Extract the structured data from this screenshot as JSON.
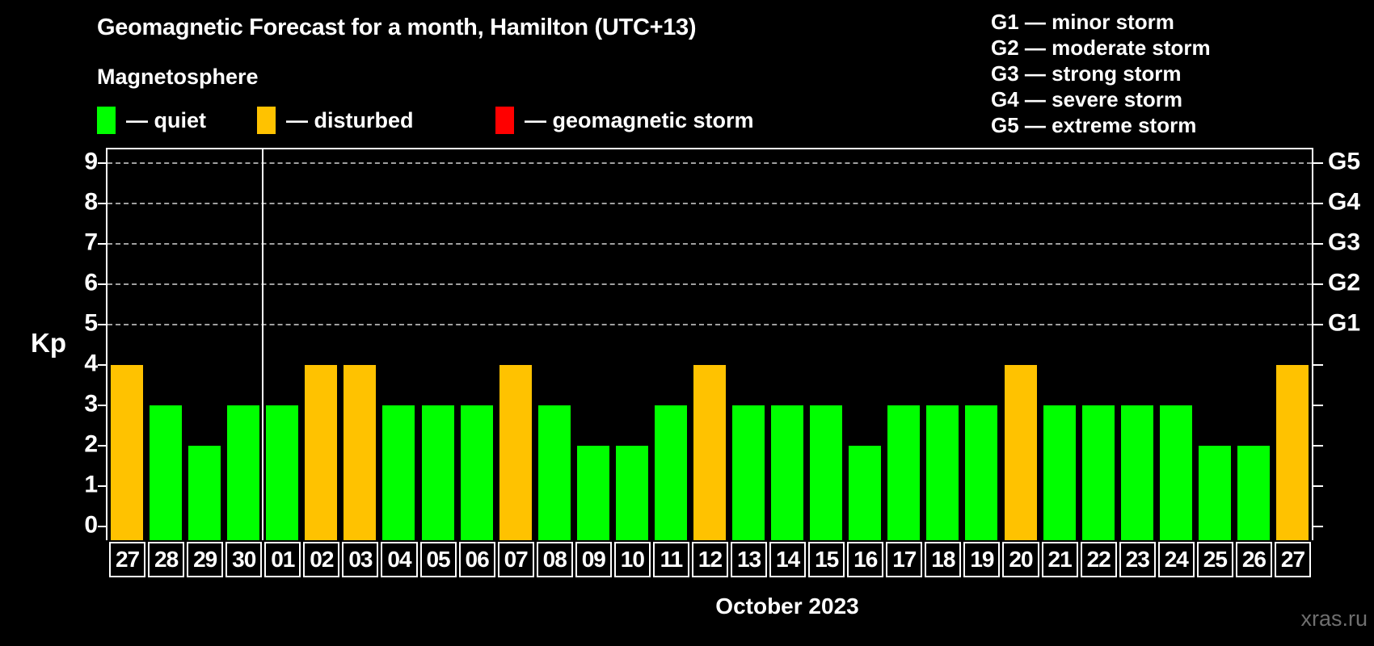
{
  "header": {
    "title": "Geomagnetic Forecast for a month, Hamilton (UTC+13)"
  },
  "legend": {
    "title": "Magnetosphere",
    "items": [
      {
        "status": "quiet",
        "label": "— quiet",
        "color": "#00ff00"
      },
      {
        "status": "disturbed",
        "label": "— disturbed",
        "color": "#ffc200"
      },
      {
        "status": "storm",
        "label": "— geomagnetic storm",
        "color": "#ff0000"
      }
    ]
  },
  "g_legend": [
    "G1 — minor storm",
    "G2 — moderate storm",
    "G3 — strong storm",
    "G4 — severe storm",
    "G5 — extreme storm"
  ],
  "chart_data": {
    "type": "bar",
    "title": "Geomagnetic Forecast for a month, Hamilton (UTC+13)",
    "ylabel": "Kp",
    "xlabel": "October 2023",
    "ylim": [
      0,
      9
    ],
    "yticks": [
      0,
      1,
      2,
      3,
      4,
      5,
      6,
      7,
      8,
      9
    ],
    "gridlines_kp": [
      5,
      6,
      7,
      8,
      9
    ],
    "grid_style": "dashed",
    "right_axis": [
      {
        "kp": 5,
        "label": "G1"
      },
      {
        "kp": 6,
        "label": "G2"
      },
      {
        "kp": 7,
        "label": "G3"
      },
      {
        "kp": 8,
        "label": "G4"
      },
      {
        "kp": 9,
        "label": "G5"
      }
    ],
    "categories": [
      "27",
      "28",
      "29",
      "30",
      "01",
      "02",
      "03",
      "04",
      "05",
      "06",
      "07",
      "08",
      "09",
      "10",
      "11",
      "12",
      "13",
      "14",
      "15",
      "16",
      "17",
      "18",
      "19",
      "20",
      "21",
      "22",
      "23",
      "24",
      "25",
      "26",
      "27"
    ],
    "values": [
      4,
      3,
      2,
      3,
      3,
      4,
      4,
      3,
      3,
      3,
      4,
      3,
      2,
      2,
      3,
      4,
      3,
      3,
      3,
      2,
      3,
      3,
      3,
      4,
      3,
      3,
      3,
      3,
      2,
      2,
      4
    ],
    "statuses": [
      "disturbed",
      "quiet",
      "quiet",
      "quiet",
      "quiet",
      "disturbed",
      "disturbed",
      "quiet",
      "quiet",
      "quiet",
      "disturbed",
      "quiet",
      "quiet",
      "quiet",
      "quiet",
      "disturbed",
      "quiet",
      "quiet",
      "quiet",
      "quiet",
      "quiet",
      "quiet",
      "quiet",
      "disturbed",
      "quiet",
      "quiet",
      "quiet",
      "quiet",
      "quiet",
      "quiet",
      "disturbed"
    ],
    "divider_before_index": 4
  },
  "colors": {
    "background": "#000000",
    "quiet": "#00ff00",
    "disturbed": "#ffc200",
    "storm": "#ff0000",
    "grid": "#a0a0a0",
    "axis": "#ffffff",
    "watermark": "#6f6f6f"
  },
  "watermark": "xras.ru"
}
